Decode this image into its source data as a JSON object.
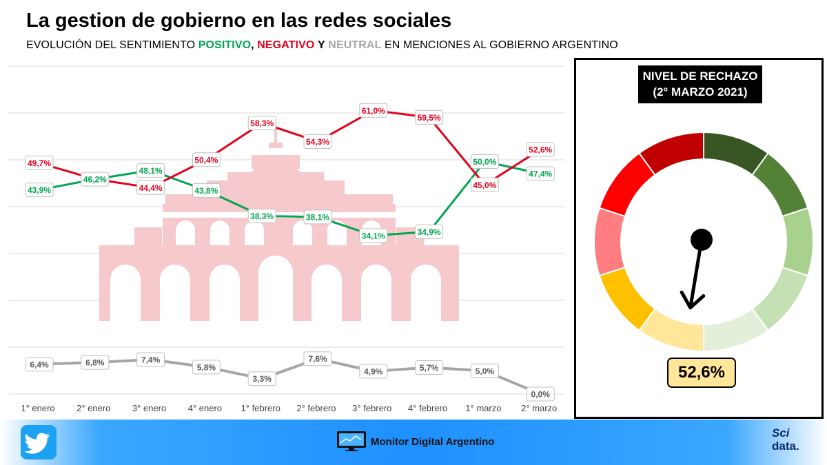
{
  "title": "La gestion de gobierno en las redes sociales",
  "subtitle": {
    "prefix": "EVOLUCIÓN DEL SENTIMIENTO",
    "positivo": "POSITIVO",
    "comma": ",",
    "negativo": "NEGATIVO",
    "y": "Y",
    "neutral": "NEUTRAL",
    "suffix": "EN MENCIONES AL GOBIERNO ARGENTINO"
  },
  "colors": {
    "positivo": "#00a650",
    "negativo": "#e3001b",
    "neutral": "#a6a6a6",
    "watermark": "#f6c9cc",
    "footer": "#1e90ff"
  },
  "chart_data": {
    "type": "line",
    "categories": [
      "1° enero",
      "2° enero",
      "3° enero",
      "4° enero",
      "1° febrero",
      "2° febrero",
      "3° febrero",
      "4° febrero",
      "1° marzo",
      "2° marzo"
    ],
    "series": [
      {
        "key": "negativo",
        "values": [
          49.7,
          46.2,
          44.4,
          50.4,
          58.3,
          54.3,
          61.0,
          59.5,
          45.0,
          52.6
        ],
        "labels": [
          "49,7%",
          "",
          "44,4%",
          "50,4%",
          "58,3%",
          "54,3%",
          "61,0%",
          "59,5%",
          "45,0%",
          "52,6%"
        ]
      },
      {
        "key": "positivo",
        "values": [
          43.9,
          46.2,
          48.1,
          43.8,
          38.3,
          38.1,
          34.1,
          34.9,
          50.0,
          47.4
        ],
        "labels": [
          "43,9%",
          "46,2%",
          "48,1%",
          "43,8%",
          "38,3%",
          "38,1%",
          "34,1%",
          "34,9%",
          "50,0%",
          "47,4%"
        ]
      },
      {
        "key": "neutral",
        "values": [
          6.4,
          6.8,
          7.4,
          5.8,
          3.3,
          7.6,
          4.9,
          5.7,
          5.0,
          0.0
        ],
        "labels": [
          "6,4%",
          "6,8%",
          "7,4%",
          "5,8%",
          "3,3%",
          "7,6%",
          "4,9%",
          "5,7%",
          "5,0%",
          "0,0%"
        ]
      }
    ],
    "grid": true,
    "watermark_icon": "casa-rosada-icon"
  },
  "gauge": {
    "title_line1": "NIVEL DE RECHAZO",
    "title_line2": "(2° MARZO 2021)",
    "value": 52.6,
    "value_label": "52,6%",
    "segment_colors": [
      "#375623",
      "#538135",
      "#a9d18e",
      "#c5e0b4",
      "#e2f0d9",
      "#ffe699",
      "#ffc000",
      "#ff7c80",
      "#ff0000",
      "#c00000"
    ]
  },
  "footer": {
    "brand": "Monitor Digital Argentino",
    "twitter_icon": "twitter-bird-icon",
    "logo_sci": "Sci",
    "logo_data": "data."
  }
}
